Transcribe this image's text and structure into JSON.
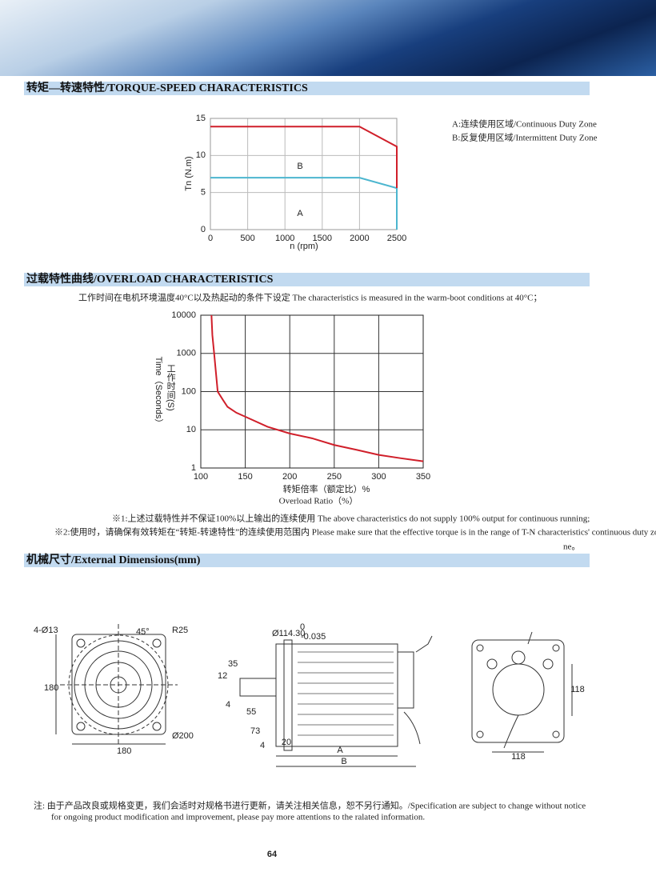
{
  "sections": {
    "torque": "转矩—转速特性/TORQUE-SPEED CHARACTERISTICS",
    "overload": "过载特性曲线/OVERLOAD CHARACTERISTICS",
    "dimensions": "机械尺寸/External Dimensions(mm)"
  },
  "chart_data": [
    {
      "type": "line",
      "xlabel": "n (rpm)",
      "ylabel": "Tn (N.m)",
      "xlim": [
        0,
        2500
      ],
      "ylim": [
        0,
        15
      ],
      "xticks": [
        0,
        500,
        1000,
        1500,
        2000,
        2500
      ],
      "yticks": [
        0,
        5,
        10,
        15
      ],
      "grid": true,
      "legend": "upper right",
      "series": [
        {
          "name": "A:连续使用区域/Continuous Duty Zone",
          "color": "#4cb6cf",
          "x": [
            0,
            2000,
            2500,
            2500
          ],
          "values": [
            7,
            7,
            5.6,
            0
          ]
        },
        {
          "name": "B:反复使用区域/Intermittent Duty Zone",
          "color": "#d01f2a",
          "x": [
            0,
            2000,
            2500,
            2500
          ],
          "values": [
            13.9,
            13.9,
            11.2,
            5.6
          ]
        }
      ],
      "annotations": [
        "B",
        "A"
      ]
    },
    {
      "type": "line",
      "subtitle": "工作时间在电机环境温度40°C以及热起动的条件下设定 The characteristics is measured in the warm-boot conditions at 40°C；",
      "yscale": "log",
      "xlim": [
        100,
        350
      ],
      "ylim": [
        1,
        10000
      ],
      "xticks": [
        100,
        150,
        200,
        250,
        300,
        350
      ],
      "yticks": [
        1,
        10,
        100,
        1000,
        10000
      ],
      "grid": true,
      "xlabel_cn": "转矩倍率（额定比）%",
      "xlabel_en": "Overload Ratio（%）",
      "ylabel_cn": "工作时间(S)",
      "ylabel_en": "Time（Seconds）",
      "series": [
        {
          "color": "#d01f2a",
          "x": [
            112,
            113,
            115,
            119,
            125,
            130,
            140,
            150,
            175,
            200,
            225,
            250,
            275,
            300,
            325,
            350
          ],
          "values": [
            10000,
            3000,
            1000,
            100,
            60,
            40,
            28,
            22,
            12,
            8,
            6,
            4,
            3,
            2.2,
            1.8,
            1.5
          ]
        }
      ]
    }
  ],
  "notes": [
    "※1:上述过载特性并不保证100%以上输出的连续使用 The above characteristics do not supply 100% output for continuous running;",
    "※2:使用时，请确保有效转矩在“转矩-转速特性”的连续使用范围内 Please make sure that the effective torque is in the range of T-N characteristics' continuous duty zone",
    "ne。"
  ],
  "dimensions": {
    "labels": [
      "4-Ø13",
      "45°",
      "R25",
      "180",
      "Ø200",
      "180",
      "Ø114.30",
      "0",
      "-0.035",
      "35",
      "12",
      "4",
      "55",
      "73",
      "4",
      "20",
      "A",
      "B",
      "118",
      "118"
    ]
  },
  "footer": {
    "note_line1": "注:  由于产品改良或规格变更，我们会适时对规格书进行更新，请关注相关信息，恕不另行通知。/Specification are subject to change without notice",
    "note_line2": "for ongoing product modification and improvement, please pay more attentions to the ralated information.",
    "page_number": "64"
  }
}
